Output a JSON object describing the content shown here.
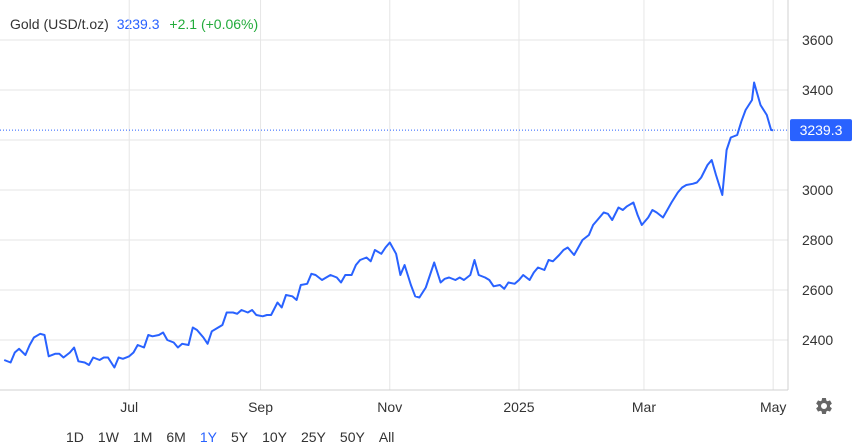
{
  "header": {
    "symbol": "Gold (USD/t.oz)",
    "price": "3239.3",
    "change": "+2.1 (+0.06%)"
  },
  "colors": {
    "line": "#2962ff",
    "grid": "#e6e6e6",
    "positive": "#22ab3b",
    "text": "#333333"
  },
  "range_buttons": [
    "1D",
    "1W",
    "1M",
    "6M",
    "1Y",
    "5Y",
    "10Y",
    "25Y",
    "50Y",
    "All"
  ],
  "active_range": "1Y",
  "settings_icon": "gear-icon",
  "chart_data": {
    "type": "line",
    "series": [
      {
        "x": [
          "2024-05-03",
          "2024-05-06",
          "2024-05-08",
          "2024-05-10",
          "2024-05-13",
          "2024-05-15",
          "2024-05-17",
          "2024-05-20",
          "2024-05-22",
          "2024-05-24",
          "2024-05-27",
          "2024-05-29",
          "2024-05-31",
          "2024-06-03",
          "2024-06-05",
          "2024-06-07",
          "2024-06-10",
          "2024-06-12",
          "2024-06-14",
          "2024-06-17",
          "2024-06-19",
          "2024-06-21",
          "2024-06-24",
          "2024-06-26",
          "2024-06-28",
          "2024-07-01",
          "2024-07-03",
          "2024-07-05",
          "2024-07-08",
          "2024-07-10",
          "2024-07-12",
          "2024-07-15",
          "2024-07-17",
          "2024-07-19",
          "2024-07-22",
          "2024-07-24",
          "2024-07-26",
          "2024-07-29",
          "2024-07-31",
          "2024-08-02",
          "2024-08-05",
          "2024-08-07",
          "2024-08-09",
          "2024-08-12",
          "2024-08-14",
          "2024-08-16",
          "2024-08-19",
          "2024-08-21",
          "2024-08-23",
          "2024-08-26",
          "2024-08-28",
          "2024-08-30",
          "2024-09-02",
          "2024-09-04",
          "2024-09-06",
          "2024-09-09",
          "2024-09-11",
          "2024-09-13",
          "2024-09-16",
          "2024-09-18",
          "2024-09-20",
          "2024-09-23",
          "2024-09-25",
          "2024-09-27",
          "2024-09-30",
          "2024-10-02",
          "2024-10-04",
          "2024-10-07",
          "2024-10-09",
          "2024-10-11",
          "2024-10-14",
          "2024-10-16",
          "2024-10-18",
          "2024-10-21",
          "2024-10-23",
          "2024-10-25",
          "2024-10-28",
          "2024-10-30",
          "2024-11-01",
          "2024-11-04",
          "2024-11-06",
          "2024-11-08",
          "2024-11-11",
          "2024-11-13",
          "2024-11-15",
          "2024-11-18",
          "2024-11-20",
          "2024-11-22",
          "2024-11-25",
          "2024-11-27",
          "2024-11-29",
          "2024-12-02",
          "2024-12-04",
          "2024-12-06",
          "2024-12-09",
          "2024-12-11",
          "2024-12-13",
          "2024-12-16",
          "2024-12-18",
          "2024-12-20",
          "2024-12-23",
          "2024-12-25",
          "2024-12-27",
          "2024-12-30",
          "2025-01-01",
          "2025-01-03",
          "2025-01-06",
          "2025-01-08",
          "2025-01-10",
          "2025-01-13",
          "2025-01-15",
          "2025-01-17",
          "2025-01-20",
          "2025-01-22",
          "2025-01-24",
          "2025-01-27",
          "2025-01-29",
          "2025-01-31",
          "2025-02-03",
          "2025-02-05",
          "2025-02-07",
          "2025-02-10",
          "2025-02-12",
          "2025-02-14",
          "2025-02-17",
          "2025-02-19",
          "2025-02-21",
          "2025-02-24",
          "2025-02-26",
          "2025-02-28",
          "2025-03-03",
          "2025-03-05",
          "2025-03-07",
          "2025-03-10",
          "2025-03-12",
          "2025-03-14",
          "2025-03-17",
          "2025-03-19",
          "2025-03-21",
          "2025-03-24",
          "2025-03-26",
          "2025-03-28",
          "2025-03-31",
          "2025-04-02",
          "2025-04-04",
          "2025-04-07",
          "2025-04-09",
          "2025-04-11",
          "2025-04-14",
          "2025-04-16",
          "2025-04-18",
          "2025-04-21",
          "2025-04-22",
          "2025-04-23",
          "2025-04-25",
          "2025-04-28",
          "2025-04-30",
          "2025-05-01"
        ],
        "y": [
          2320,
          2310,
          2350,
          2365,
          2340,
          2380,
          2410,
          2425,
          2420,
          2335,
          2345,
          2345,
          2330,
          2350,
          2370,
          2315,
          2310,
          2300,
          2330,
          2320,
          2330,
          2330,
          2290,
          2330,
          2325,
          2335,
          2350,
          2380,
          2370,
          2420,
          2415,
          2420,
          2430,
          2400,
          2390,
          2370,
          2385,
          2380,
          2450,
          2440,
          2410,
          2385,
          2435,
          2450,
          2460,
          2510,
          2510,
          2505,
          2520,
          2510,
          2520,
          2500,
          2495,
          2500,
          2500,
          2550,
          2530,
          2580,
          2575,
          2560,
          2620,
          2625,
          2665,
          2660,
          2640,
          2650,
          2660,
          2650,
          2630,
          2660,
          2660,
          2700,
          2720,
          2730,
          2715,
          2760,
          2745,
          2770,
          2790,
          2745,
          2660,
          2700,
          2620,
          2575,
          2570,
          2610,
          2660,
          2710,
          2630,
          2645,
          2650,
          2640,
          2650,
          2640,
          2660,
          2720,
          2660,
          2650,
          2640,
          2615,
          2620,
          2605,
          2630,
          2625,
          2640,
          2660,
          2640,
          2670,
          2690,
          2680,
          2720,
          2715,
          2740,
          2760,
          2770,
          2740,
          2770,
          2800,
          2820,
          2860,
          2880,
          2910,
          2905,
          2880,
          2930,
          2920,
          2935,
          2950,
          2900,
          2860,
          2890,
          2920,
          2910,
          2890,
          2920,
          2950,
          2990,
          3010,
          3020,
          3025,
          3030,
          3050,
          3100,
          3120,
          3060,
          2980,
          3160,
          3210,
          3220,
          3275,
          3320,
          3360,
          3430,
          3400,
          3340,
          3300,
          3240,
          3239.3
        ]
      }
    ],
    "xticks": [
      {
        "value": "2024-07-01",
        "label": "Jul"
      },
      {
        "value": "2024-09-01",
        "label": "Sep"
      },
      {
        "value": "2024-11-01",
        "label": "Nov"
      },
      {
        "value": "2025-01-01",
        "label": "2025"
      },
      {
        "value": "2025-03-01",
        "label": "Mar"
      },
      {
        "value": "2025-05-01",
        "label": "May"
      }
    ],
    "yticks": [
      2400,
      2600,
      2800,
      3000,
      3200,
      3400,
      3600
    ],
    "ytick_labels": [
      "2400",
      "2600",
      "2800",
      "3000",
      "",
      "3400",
      "3600"
    ],
    "ylim": [
      2200,
      3760
    ],
    "xlim": [
      "2024-05-01",
      "2025-05-08"
    ],
    "last_value": 3239.3,
    "last_value_label": "3239.3",
    "grid": true,
    "legend": "none",
    "y_axis_position": "right"
  }
}
